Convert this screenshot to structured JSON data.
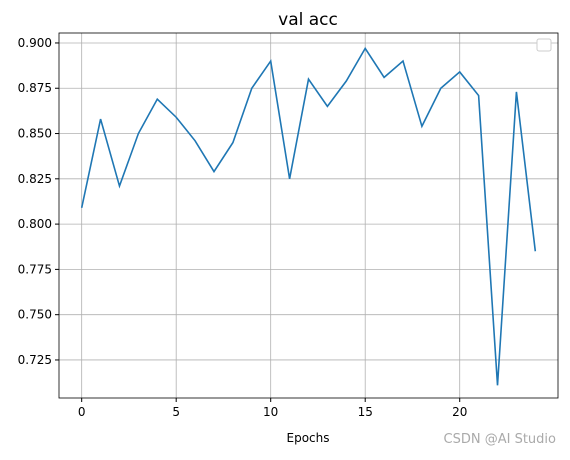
{
  "chart_data": {
    "type": "line",
    "title": "val acc",
    "x_label": "Epochs",
    "x": [
      0,
      1,
      2,
      3,
      4,
      5,
      6,
      7,
      8,
      9,
      10,
      11,
      12,
      13,
      14,
      15,
      16,
      17,
      18,
      19,
      20,
      21,
      22,
      23,
      24
    ],
    "series": [
      {
        "color": "#1f77b4",
        "values": [
          0.809,
          0.858,
          0.821,
          0.85,
          0.869,
          0.859,
          0.846,
          0.829,
          0.845,
          0.875,
          0.89,
          0.825,
          0.88,
          0.865,
          0.879,
          0.897,
          0.881,
          0.89,
          0.854,
          0.875,
          0.884,
          0.871,
          0.711,
          0.873,
          0.785
        ]
      }
    ],
    "xlim": [
      -1.2,
      25.2
    ],
    "xticks": [
      0,
      5,
      10,
      15,
      20
    ],
    "ylim": [
      0.704,
      0.9055
    ],
    "yticks": [
      {
        "value": 0.725,
        "label": "0.725"
      },
      {
        "value": 0.75,
        "label": "0.750"
      },
      {
        "value": 0.775,
        "label": "0.775"
      },
      {
        "value": 0.8,
        "label": "0.800"
      },
      {
        "value": 0.825,
        "label": "0.825"
      },
      {
        "value": 0.85,
        "label": "0.850"
      },
      {
        "value": 0.875,
        "label": "0.875"
      },
      {
        "value": 0.9,
        "label": "0.900"
      }
    ],
    "grid": true
  },
  "watermark": "CSDN @AI Studio"
}
